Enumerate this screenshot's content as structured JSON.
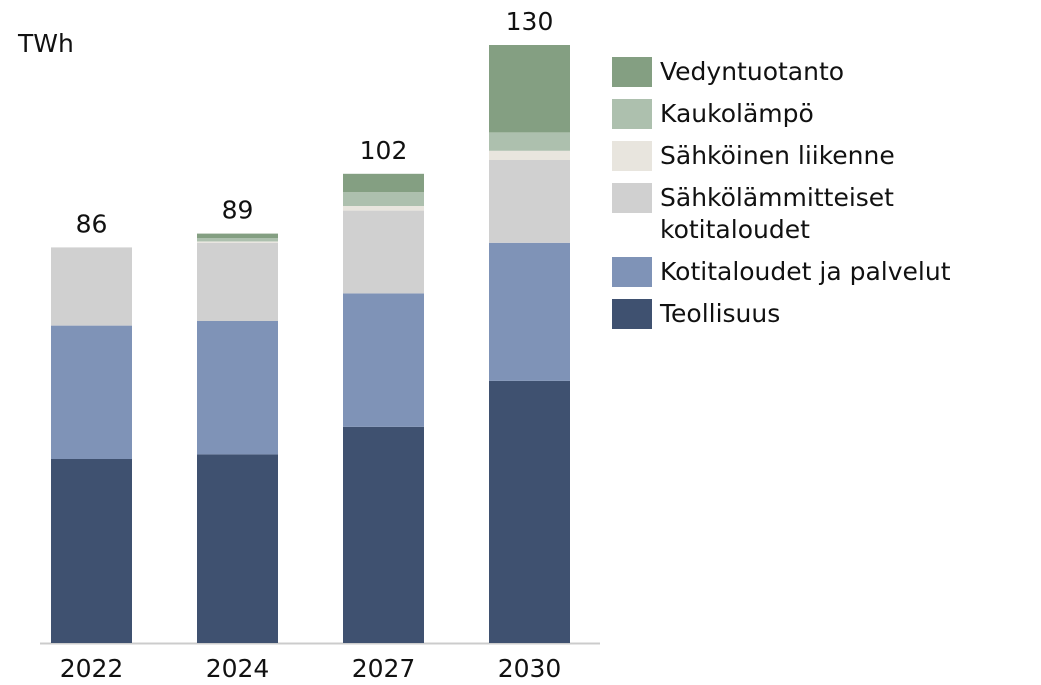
{
  "chart_data": {
    "type": "stacked-bar",
    "unit_label": "TWh",
    "categories": [
      "2022",
      "2024",
      "2027",
      "2030"
    ],
    "series": [
      {
        "name": "Teollisuus",
        "color": "#3f5170",
        "values": [
          40,
          41,
          47,
          57
        ]
      },
      {
        "name": "Kotitaloudet ja palvelut",
        "color": "#7f93b7",
        "values": [
          29,
          29,
          29,
          30
        ]
      },
      {
        "name": "Sähkölämmitteiset kotitaloudet",
        "color": "#d0d0d0",
        "values": [
          17,
          17,
          18,
          18
        ]
      },
      {
        "name": "Sähköinen liikenne",
        "color": "#e8e5de",
        "values": [
          0,
          0.3,
          1,
          2
        ]
      },
      {
        "name": "Kaukolämpö",
        "color": "#adc0ae",
        "values": [
          0,
          0.7,
          3,
          4
        ]
      },
      {
        "name": "Vedyntuotanto",
        "color": "#849f82",
        "values": [
          0,
          1,
          4,
          19
        ]
      }
    ],
    "totals": [
      86,
      89,
      102,
      130
    ],
    "ylim": [
      0,
      130
    ]
  }
}
